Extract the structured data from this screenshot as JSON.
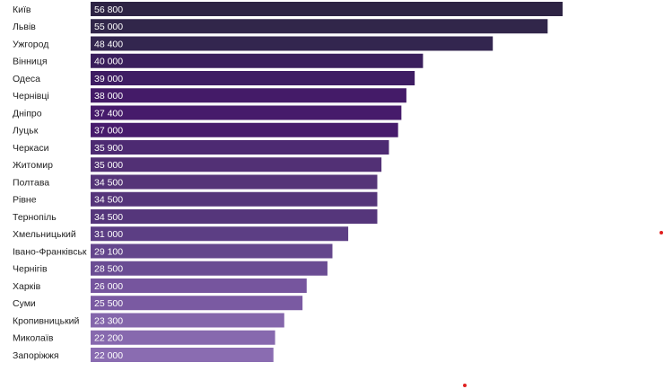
{
  "chart_data": {
    "type": "bar",
    "orientation": "horizontal",
    "categories": [
      "Київ",
      "Львів",
      "Ужгород",
      "Вінниця",
      "Одеса",
      "Чернівці",
      "Дніпро",
      "Луцьк",
      "Черкаси",
      "Житомир",
      "Полтава",
      "Рівне",
      "Тернопіль",
      "Хмельницький",
      "Івано-Франківськ",
      "Чернігів",
      "Харків",
      "Суми",
      "Кропивницький",
      "Миколаїв",
      "Запоріжжя"
    ],
    "values": [
      56800,
      55000,
      48400,
      40000,
      39000,
      38000,
      37400,
      37000,
      35900,
      35000,
      34500,
      34500,
      34500,
      31000,
      29100,
      28500,
      26000,
      25500,
      23300,
      22200,
      22000
    ],
    "value_labels": [
      "56 800",
      "55 000",
      "48 400",
      "40 000",
      "39 000",
      "38 000",
      "37 400",
      "37 000",
      "35 900",
      "35 000",
      "34 500",
      "34 500",
      "34 500",
      "31 000",
      "29 100",
      "28 500",
      "26 000",
      "25 500",
      "23 300",
      "22 200",
      "22 000"
    ],
    "title": "",
    "xlabel": "",
    "ylabel": "",
    "xlim": [
      0,
      57000
    ],
    "grid": false,
    "legend": "none",
    "colors": [
      "#2e2444",
      "#31264a",
      "#33264f",
      "#3a1f5c",
      "#3e1d63",
      "#441b68",
      "#461b6b",
      "#471b6c",
      "#4d2a72",
      "#523075",
      "#553578",
      "#55357a",
      "#55367b",
      "#5c3e84",
      "#64468c",
      "#6a4c93",
      "#76559e",
      "#7a5aa2",
      "#8466ab",
      "#8769ae",
      "#8a6cb1"
    ]
  }
}
